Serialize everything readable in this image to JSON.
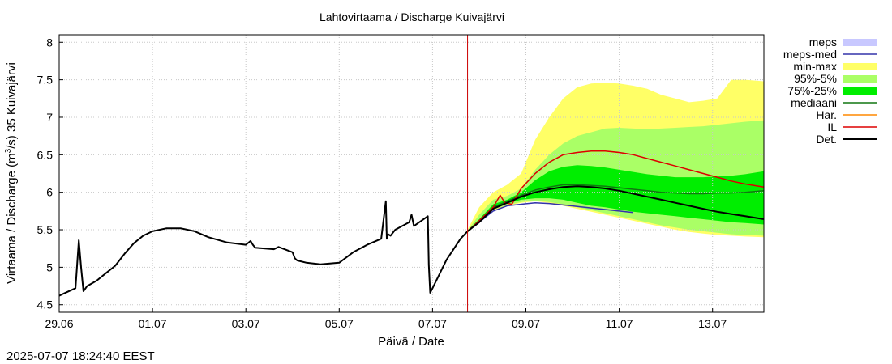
{
  "chart_data": {
    "type": "area",
    "title": "Lahtovirtaama / Discharge  Kuivajärvi",
    "xlabel": "Päivä / Date",
    "ylabel_prefix": "Virtaama / Discharge (m",
    "ylabel_sup": "3",
    "ylabel_suffix": "/s)  35 Kuivajärvi",
    "timestamp": "2025-07-07 18:24:40 EEST",
    "x_range_days": [
      0,
      15.1
    ],
    "ylim": [
      4.4,
      8.1
    ],
    "x_ticks": [
      {
        "day": 0,
        "label": "29.06"
      },
      {
        "day": 2,
        "label": "01.07"
      },
      {
        "day": 4,
        "label": "03.07"
      },
      {
        "day": 6,
        "label": "05.07"
      },
      {
        "day": 8,
        "label": "07.07"
      },
      {
        "day": 10,
        "label": "09.07"
      },
      {
        "day": 12,
        "label": "11.07"
      },
      {
        "day": 14,
        "label": "13.07"
      }
    ],
    "y_ticks": [
      {
        "value": 4.5,
        "label": "4.5"
      },
      {
        "value": 5,
        "label": "5"
      },
      {
        "value": 5.5,
        "label": "5.5"
      },
      {
        "value": 6,
        "label": "6"
      },
      {
        "value": 6.5,
        "label": "6.5"
      },
      {
        "value": 7,
        "label": "7"
      },
      {
        "value": 7.5,
        "label": "7.5"
      },
      {
        "value": 8,
        "label": "8"
      }
    ],
    "forecast_start_day": 8.75,
    "legend_position": "right",
    "legend": [
      {
        "label": "meps",
        "color": "#c8c8ff",
        "kind": "box"
      },
      {
        "label": "meps-med",
        "color": "#3333aa",
        "kind": "line"
      },
      {
        "label": "min-max",
        "color": "#ffff66",
        "kind": "box"
      },
      {
        "label": "95%-5%",
        "color": "#aaff66",
        "kind": "box"
      },
      {
        "label": "75%-25%",
        "color": "#00ee00",
        "kind": "box"
      },
      {
        "label": "mediaani",
        "color": "#117711",
        "kind": "line"
      },
      {
        "label": "Har.",
        "color": "#ff8800",
        "kind": "line"
      },
      {
        "label": "IL",
        "color": "#dd0000",
        "kind": "line"
      },
      {
        "label": "Det.",
        "color": "#000000",
        "kind": "line"
      }
    ],
    "series": [
      {
        "name": "Det.",
        "x": [
          0,
          0.1,
          0.35,
          0.42,
          0.47,
          0.52,
          0.6,
          0.8,
          1.0,
          1.2,
          1.4,
          1.6,
          1.8,
          2.0,
          2.3,
          2.6,
          2.9,
          3.2,
          3.6,
          4.0,
          4.1,
          4.15,
          4.2,
          4.6,
          4.7,
          5.0,
          5.05,
          5.1,
          5.3,
          5.6,
          6.0,
          6.3,
          6.6,
          6.9,
          7.0,
          7.02,
          7.05,
          7.1,
          7.2,
          7.5,
          7.55,
          7.6,
          7.9,
          7.92,
          7.95,
          8.0,
          8.3,
          8.6,
          8.75,
          9.0,
          9.3,
          9.6,
          9.9,
          10.2,
          10.5,
          10.8,
          11.1,
          11.4,
          11.7,
          12.0,
          12.3,
          12.6,
          12.9,
          13.2,
          13.5,
          13.8,
          14.1,
          14.4,
          14.7,
          15.1
        ],
        "values": [
          4.62,
          4.65,
          4.72,
          5.36,
          5.0,
          4.68,
          4.75,
          4.82,
          4.92,
          5.02,
          5.18,
          5.32,
          5.42,
          5.48,
          5.52,
          5.52,
          5.48,
          5.4,
          5.33,
          5.3,
          5.35,
          5.3,
          5.26,
          5.24,
          5.27,
          5.2,
          5.12,
          5.09,
          5.06,
          5.04,
          5.06,
          5.2,
          5.3,
          5.38,
          5.88,
          5.38,
          5.44,
          5.42,
          5.5,
          5.6,
          5.7,
          5.55,
          5.68,
          5.03,
          4.66,
          4.72,
          5.1,
          5.38,
          5.48,
          5.6,
          5.78,
          5.86,
          5.94,
          6.0,
          6.04,
          6.07,
          6.08,
          6.07,
          6.05,
          6.02,
          5.98,
          5.94,
          5.9,
          5.86,
          5.82,
          5.78,
          5.74,
          5.71,
          5.68,
          5.64
        ]
      },
      {
        "name": "IL",
        "x": [
          8.75,
          9.0,
          9.3,
          9.45,
          9.55,
          9.7,
          9.9,
          10.2,
          10.5,
          10.8,
          11.1,
          11.4,
          11.7,
          12.0,
          12.3,
          12.6,
          12.9,
          13.2,
          13.5,
          13.8,
          14.1,
          14.4,
          14.7,
          15.1
        ],
        "values": [
          5.48,
          5.62,
          5.8,
          5.96,
          5.86,
          5.84,
          6.05,
          6.25,
          6.4,
          6.5,
          6.53,
          6.55,
          6.55,
          6.53,
          6.5,
          6.45,
          6.4,
          6.35,
          6.3,
          6.25,
          6.2,
          6.15,
          6.11,
          6.07
        ]
      },
      {
        "name": "mediaani",
        "x": [
          8.75,
          9.0,
          9.3,
          9.6,
          9.9,
          10.2,
          10.5,
          10.8,
          11.1,
          11.4,
          11.7,
          12.0,
          12.3,
          12.6,
          12.9,
          13.2,
          13.5,
          13.8,
          14.1,
          14.4,
          14.7,
          15.1
        ],
        "values": [
          5.48,
          5.62,
          5.8,
          5.88,
          5.96,
          6.03,
          6.07,
          6.1,
          6.1,
          6.09,
          6.08,
          6.06,
          6.04,
          6.02,
          6.0,
          5.99,
          5.98,
          5.98,
          5.99,
          5.99,
          6.0,
          6.02
        ]
      },
      {
        "name": "meps-med",
        "x": [
          8.75,
          9.0,
          9.3,
          9.6,
          9.9,
          10.2,
          10.5,
          10.8,
          11.1,
          11.4,
          11.7,
          12.0,
          12.3
        ],
        "values": [
          5.48,
          5.6,
          5.75,
          5.82,
          5.84,
          5.86,
          5.85,
          5.83,
          5.81,
          5.79,
          5.77,
          5.75,
          5.73
        ]
      }
    ],
    "bands": [
      {
        "name": "min-max",
        "x": [
          8.75,
          9.0,
          9.3,
          9.6,
          9.9,
          10.2,
          10.5,
          10.8,
          11.1,
          11.4,
          11.7,
          12.0,
          12.3,
          12.6,
          12.9,
          13.2,
          13.5,
          13.8,
          14.1,
          14.4,
          14.7,
          15.1
        ],
        "upper": [
          5.5,
          5.8,
          6.0,
          6.1,
          6.25,
          6.7,
          7.0,
          7.25,
          7.4,
          7.45,
          7.46,
          7.45,
          7.42,
          7.38,
          7.3,
          7.25,
          7.2,
          7.22,
          7.25,
          7.5,
          7.5,
          7.48
        ],
        "lower": [
          5.46,
          5.6,
          5.76,
          5.82,
          5.86,
          5.88,
          5.86,
          5.82,
          5.78,
          5.74,
          5.7,
          5.66,
          5.62,
          5.58,
          5.54,
          5.5,
          5.47,
          5.45,
          5.43,
          5.42,
          5.41,
          5.4
        ]
      },
      {
        "name": "95%-5%",
        "x": [
          8.75,
          9.0,
          9.3,
          9.6,
          9.9,
          10.2,
          10.5,
          10.8,
          11.1,
          11.4,
          11.7,
          12.0,
          12.3,
          12.6,
          12.9,
          13.2,
          13.5,
          13.8,
          14.1,
          14.4,
          14.7,
          15.1
        ],
        "upper": [
          5.49,
          5.7,
          5.9,
          5.95,
          6.05,
          6.3,
          6.5,
          6.65,
          6.75,
          6.8,
          6.85,
          6.86,
          6.85,
          6.84,
          6.85,
          6.86,
          6.87,
          6.88,
          6.9,
          6.92,
          6.94,
          6.96
        ],
        "lower": [
          5.47,
          5.61,
          5.77,
          5.83,
          5.87,
          5.89,
          5.87,
          5.84,
          5.8,
          5.76,
          5.72,
          5.68,
          5.64,
          5.6,
          5.56,
          5.53,
          5.5,
          5.48,
          5.46,
          5.44,
          5.43,
          5.42
        ]
      },
      {
        "name": "75%-25%",
        "x": [
          8.75,
          9.0,
          9.3,
          9.6,
          9.9,
          10.2,
          10.5,
          10.8,
          11.1,
          11.4,
          11.7,
          12.0,
          12.3,
          12.6,
          12.9,
          13.2,
          13.5,
          13.8,
          14.1,
          14.4,
          14.7,
          15.1
        ],
        "upper": [
          5.49,
          5.64,
          5.84,
          5.9,
          6.0,
          6.16,
          6.28,
          6.34,
          6.36,
          6.35,
          6.33,
          6.3,
          6.27,
          6.24,
          6.22,
          6.2,
          6.2,
          6.2,
          6.21,
          6.22,
          6.24,
          6.28
        ],
        "lower": [
          5.47,
          5.61,
          5.78,
          5.85,
          5.9,
          5.92,
          5.92,
          5.9,
          5.86,
          5.82,
          5.8,
          5.77,
          5.74,
          5.72,
          5.7,
          5.68,
          5.66,
          5.64,
          5.62,
          5.6,
          5.59,
          5.57
        ]
      }
    ]
  }
}
